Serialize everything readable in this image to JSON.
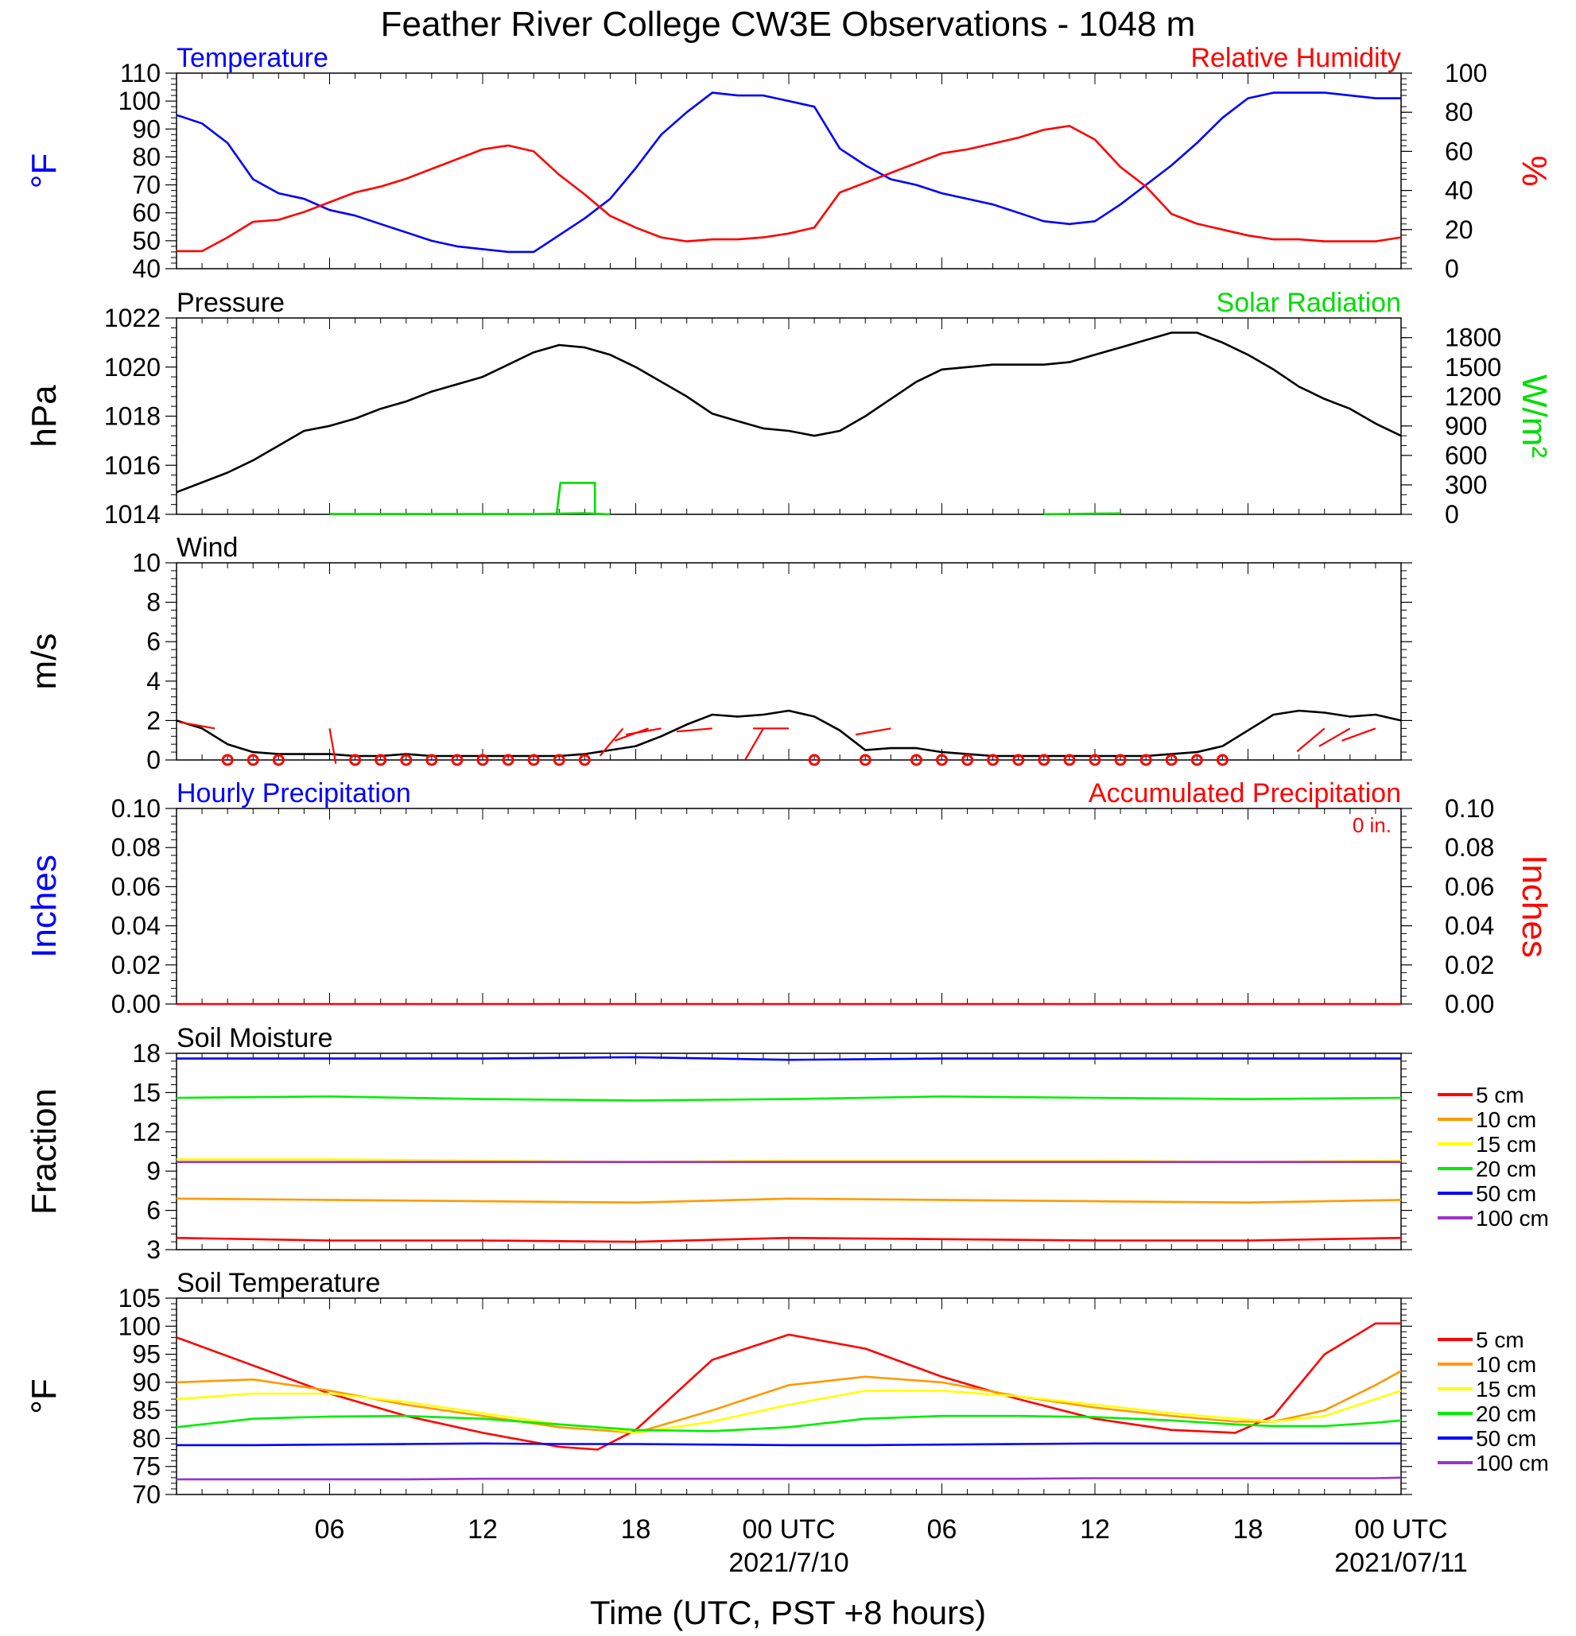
{
  "title": "Feather River College CW3E Observations - 1048 m",
  "xlabel": "Time (UTC, PST +8 hours)",
  "x_ticks": [
    "06",
    "12",
    "18",
    "00 UTC",
    "06",
    "12",
    "18",
    "00 UTC"
  ],
  "x_dates": [
    "2021/7/10",
    "2021/07/11"
  ],
  "colors": {
    "temperature": "#0000ff",
    "humidity": "#ff0000",
    "pressure": "#000000",
    "solar": "#00dd00",
    "wind": "#000000",
    "barb": "#ff0000",
    "precip": "#ff0000",
    "depth_5": "#ff0000",
    "depth_10": "#ff9900",
    "depth_15": "#ffff00",
    "depth_20": "#00ee00",
    "depth_50": "#0000ff",
    "depth_100": "#9933cc"
  },
  "chart_data": [
    {
      "type": "line",
      "name": "temperature-humidity",
      "left_title": "Temperature",
      "right_title": "Relative Humidity",
      "ylabel_left": "°F",
      "ylabel_right": "%",
      "ylim_left": [
        40,
        110
      ],
      "ylim_right": [
        0,
        100
      ],
      "yticks_left": [
        "40",
        "50",
        "60",
        "70",
        "80",
        "90",
        "100",
        "110"
      ],
      "yticks_right": [
        "0",
        "20",
        "40",
        "60",
        "80",
        "100"
      ],
      "x_hours": [
        0,
        1,
        2,
        3,
        4,
        5,
        6,
        7,
        8,
        9,
        10,
        11,
        12,
        13,
        14,
        15,
        16,
        17,
        18,
        19,
        20,
        21,
        22,
        23,
        24,
        25,
        26,
        27,
        28,
        29,
        30,
        31,
        32,
        33,
        34,
        35,
        36,
        37,
        38,
        39,
        40,
        41,
        42,
        43,
        44,
        45,
        46,
        47,
        48
      ],
      "series": [
        {
          "name": "Temperature",
          "axis": "left",
          "values": [
            95,
            92,
            85,
            72,
            67,
            65,
            61,
            59,
            56,
            53,
            50,
            48,
            47,
            46,
            46,
            52,
            58,
            65,
            76,
            88,
            96,
            103,
            102,
            102,
            100,
            98,
            83,
            77,
            72,
            70,
            67,
            65,
            63,
            60,
            57,
            56,
            57,
            63,
            70,
            77,
            85,
            94,
            101,
            103,
            103,
            103,
            102,
            101,
            101
          ]
        },
        {
          "name": "Relative Humidity",
          "axis": "right",
          "values": [
            9,
            9,
            16,
            24,
            25,
            29,
            34,
            39,
            42,
            46,
            51,
            56,
            61,
            63,
            60,
            48,
            38,
            27,
            21,
            16,
            14,
            15,
            15,
            16,
            18,
            21,
            39,
            44,
            49,
            54,
            59,
            61,
            64,
            67,
            71,
            73,
            66,
            52,
            42,
            28,
            23,
            20,
            17,
            15,
            15,
            14,
            14,
            14,
            16
          ]
        }
      ]
    },
    {
      "type": "line",
      "name": "pressure-solar",
      "left_title": "Pressure",
      "right_title": "Solar Radiation",
      "ylabel_left": "hPa",
      "ylabel_right": "W/m²",
      "ylim_left": [
        1014,
        1022
      ],
      "ylim_right": [
        0,
        2000
      ],
      "yticks_left": [
        "1014",
        "1016",
        "1018",
        "1020",
        "1022"
      ],
      "yticks_right": [
        "0",
        "300",
        "600",
        "900",
        "1200",
        "1500",
        "1800"
      ],
      "x_hours": [
        0,
        1,
        2,
        3,
        4,
        5,
        6,
        7,
        8,
        9,
        10,
        11,
        12,
        13,
        14,
        15,
        16,
        17,
        18,
        19,
        20,
        21,
        22,
        23,
        24,
        25,
        26,
        27,
        28,
        29,
        30,
        31,
        32,
        33,
        34,
        35,
        36,
        37,
        38,
        39,
        40,
        41,
        42,
        43,
        44,
        45,
        46,
        47,
        48
      ],
      "series": [
        {
          "name": "Pressure",
          "axis": "left",
          "values": [
            1014.9,
            1015.3,
            1015.7,
            1016.2,
            1016.8,
            1017.4,
            1017.6,
            1017.9,
            1018.3,
            1018.6,
            1019.0,
            1019.3,
            1019.6,
            1020.1,
            1020.6,
            1020.9,
            1020.8,
            1020.5,
            1020.0,
            1019.4,
            1018.8,
            1018.1,
            1017.8,
            1017.5,
            1017.4,
            1017.2,
            1017.4,
            1018.0,
            1018.7,
            1019.4,
            1019.9,
            1020.0,
            1020.1,
            1020.1,
            1020.1,
            1020.2,
            1020.5,
            1020.8,
            1021.1,
            1021.4,
            1021.4,
            1021.0,
            1020.5,
            1019.9,
            1019.2,
            1018.7,
            1018.3,
            1017.7,
            1017.2
          ]
        },
        {
          "name": "Solar Radiation",
          "axis": "right",
          "values": [
            null,
            null,
            null,
            null,
            null,
            null,
            3,
            3,
            3,
            3,
            3,
            3,
            3,
            3,
            4,
            8,
            12,
            0,
            null,
            null,
            null,
            null,
            null,
            null,
            null,
            null,
            null,
            null,
            null,
            null,
            null,
            null,
            null,
            null,
            2,
            4,
            8,
            10,
            null,
            null,
            null,
            null,
            null,
            null,
            null,
            null,
            null,
            null,
            null
          ]
        }
      ],
      "solar_pulse": {
        "start_hour": 14.9,
        "end_hour": 16.4,
        "value": 320
      }
    },
    {
      "type": "line",
      "name": "wind",
      "left_title": "Wind",
      "ylabel_left": "m/s",
      "ylim_left": [
        0,
        10
      ],
      "yticks_left": [
        "0",
        "2",
        "4",
        "6",
        "8",
        "10"
      ],
      "x_hours": [
        0,
        1,
        2,
        3,
        4,
        5,
        6,
        7,
        8,
        9,
        10,
        11,
        12,
        13,
        14,
        15,
        16,
        17,
        18,
        19,
        20,
        21,
        22,
        23,
        24,
        25,
        26,
        27,
        28,
        29,
        30,
        31,
        32,
        33,
        34,
        35,
        36,
        37,
        38,
        39,
        40,
        41,
        42,
        43,
        44,
        45,
        46,
        47,
        48
      ],
      "series": [
        {
          "name": "Wind",
          "axis": "left",
          "values": [
            2.0,
            1.6,
            0.8,
            0.4,
            0.3,
            0.3,
            0.3,
            0.2,
            0.2,
            0.3,
            0.2,
            0.2,
            0.2,
            0.2,
            0.2,
            0.2,
            0.3,
            0.5,
            0.7,
            1.2,
            1.8,
            2.3,
            2.2,
            2.3,
            2.5,
            2.2,
            1.5,
            0.5,
            0.6,
            0.6,
            0.4,
            0.3,
            0.2,
            0.2,
            0.2,
            0.2,
            0.2,
            0.2,
            0.2,
            0.3,
            0.4,
            0.7,
            1.5,
            2.3,
            2.5,
            2.4,
            2.2,
            2.3,
            2.0
          ]
        }
      ],
      "calm_circles_hours": [
        2,
        3,
        4,
        7,
        8,
        9,
        10,
        11,
        12,
        13,
        14,
        15,
        16,
        25,
        27,
        29,
        30,
        31,
        32,
        33,
        34,
        35,
        36,
        37,
        38,
        39,
        40,
        41
      ],
      "barbs": [
        {
          "hour": 1.5,
          "dir": 280,
          "len": 1
        },
        {
          "hour": 6.0,
          "dir": 170,
          "len": 1
        },
        {
          "hour": 17.5,
          "dir": 220,
          "len": 1
        },
        {
          "hour": 18.5,
          "dir": 250,
          "len": 1
        },
        {
          "hour": 19.0,
          "dir": 260,
          "len": 1
        },
        {
          "hour": 21.0,
          "dir": 265,
          "len": 1
        },
        {
          "hour": 23.0,
          "dir": 210,
          "len": 1
        },
        {
          "hour": 24.0,
          "dir": 270,
          "len": 1
        },
        {
          "hour": 28.0,
          "dir": 260,
          "len": 1
        },
        {
          "hour": 45.0,
          "dir": 230,
          "len": 1
        },
        {
          "hour": 46.0,
          "dir": 240,
          "len": 1
        },
        {
          "hour": 47.0,
          "dir": 250,
          "len": 1
        }
      ]
    },
    {
      "type": "line",
      "name": "precipitation",
      "left_title": "Hourly Precipitation",
      "right_title": "Accumulated Precipitation",
      "accumulated_total": "0 in.",
      "ylabel_left": "Inches",
      "ylabel_right": "Inches",
      "ylim_left": [
        0,
        0.1
      ],
      "ylim_right": [
        0,
        0.1
      ],
      "yticks_left": [
        "0.00",
        "0.02",
        "0.04",
        "0.06",
        "0.08",
        "0.10"
      ],
      "yticks_right": [
        "0.00",
        "0.02",
        "0.04",
        "0.06",
        "0.08",
        "0.10"
      ],
      "x_hours": [
        0,
        48
      ],
      "series": [
        {
          "name": "Accumulated Precipitation",
          "axis": "left",
          "values": [
            0,
            0
          ]
        }
      ]
    },
    {
      "type": "line",
      "name": "soil-moisture",
      "left_title": "Soil Moisture",
      "ylabel_left": "Fraction",
      "ylim_left": [
        3,
        18
      ],
      "yticks_left": [
        "3",
        "6",
        "9",
        "12",
        "15",
        "18"
      ],
      "x_hours": [
        0,
        6,
        12,
        18,
        24,
        30,
        36,
        42,
        48
      ],
      "series": [
        {
          "name": "5 cm",
          "values": [
            3.9,
            3.7,
            3.7,
            3.6,
            3.9,
            3.8,
            3.7,
            3.7,
            3.9
          ]
        },
        {
          "name": "10 cm",
          "values": [
            6.9,
            6.8,
            6.7,
            6.6,
            6.9,
            6.8,
            6.7,
            6.6,
            6.8
          ]
        },
        {
          "name": "15 cm",
          "values": [
            9.9,
            9.9,
            9.8,
            9.7,
            9.8,
            9.8,
            9.8,
            9.7,
            9.8
          ]
        },
        {
          "name": "20 cm",
          "values": [
            14.6,
            14.7,
            14.5,
            14.4,
            14.5,
            14.7,
            14.6,
            14.5,
            14.6
          ]
        },
        {
          "name": "50 cm",
          "values": [
            17.6,
            17.6,
            17.6,
            17.7,
            17.5,
            17.6,
            17.6,
            17.6,
            17.6
          ]
        },
        {
          "name": "100 cm",
          "values": [
            9.7,
            9.7,
            9.7,
            9.7,
            9.7,
            9.7,
            9.7,
            9.7,
            9.7
          ]
        }
      ],
      "legend": [
        "5 cm",
        "10 cm",
        "15 cm",
        "20 cm",
        "50 cm",
        "100 cm"
      ]
    },
    {
      "type": "line",
      "name": "soil-temperature",
      "left_title": "Soil Temperature",
      "ylabel_left": "°F",
      "ylim_left": [
        70,
        105
      ],
      "yticks_left": [
        "70",
        "75",
        "80",
        "85",
        "90",
        "95",
        "100",
        "105"
      ],
      "x_hours": [
        0,
        3,
        6,
        9,
        12,
        15,
        16.5,
        18,
        21,
        24,
        27,
        30,
        33,
        36,
        39,
        41.5,
        43,
        45,
        47,
        48
      ],
      "series": [
        {
          "name": "5 cm",
          "values": [
            98,
            93,
            88,
            84,
            81,
            78.5,
            78,
            81.5,
            94,
            98.5,
            96,
            91,
            87,
            83.5,
            81.5,
            81,
            84,
            95,
            100.5,
            100.5
          ]
        },
        {
          "name": "10 cm",
          "values": [
            90,
            90.5,
            88.5,
            86,
            84,
            82,
            81.5,
            81,
            85,
            89.5,
            91,
            90,
            87.5,
            85.5,
            84,
            83,
            83,
            85,
            89.5,
            92
          ]
        },
        {
          "name": "15 cm",
          "values": [
            87,
            88,
            88,
            86.5,
            84.5,
            82.5,
            82,
            81,
            83,
            86,
            88.5,
            88.5,
            87.5,
            86,
            84.5,
            83.5,
            83,
            84,
            87,
            88.5
          ]
        },
        {
          "name": "20 cm",
          "values": [
            82,
            83.5,
            83.9,
            84,
            83.5,
            82.5,
            82,
            81.5,
            81.3,
            82,
            83.5,
            84,
            84,
            83.8,
            83.2,
            82.5,
            82.2,
            82.2,
            82.8,
            83.2
          ]
        },
        {
          "name": "50 cm",
          "values": [
            78.8,
            78.8,
            78.9,
            79,
            79.1,
            79,
            79,
            79,
            78.9,
            78.8,
            78.8,
            78.9,
            79,
            79.1,
            79.1,
            79.1,
            79.1,
            79.1,
            79.1,
            79.1
          ]
        },
        {
          "name": "100 cm",
          "values": [
            72.7,
            72.7,
            72.7,
            72.7,
            72.8,
            72.8,
            72.8,
            72.8,
            72.8,
            72.8,
            72.8,
            72.8,
            72.8,
            72.9,
            72.9,
            72.9,
            72.9,
            72.9,
            72.9,
            73.0
          ]
        }
      ],
      "legend": [
        "5 cm",
        "10 cm",
        "15 cm",
        "20 cm",
        "50 cm",
        "100 cm"
      ]
    }
  ]
}
